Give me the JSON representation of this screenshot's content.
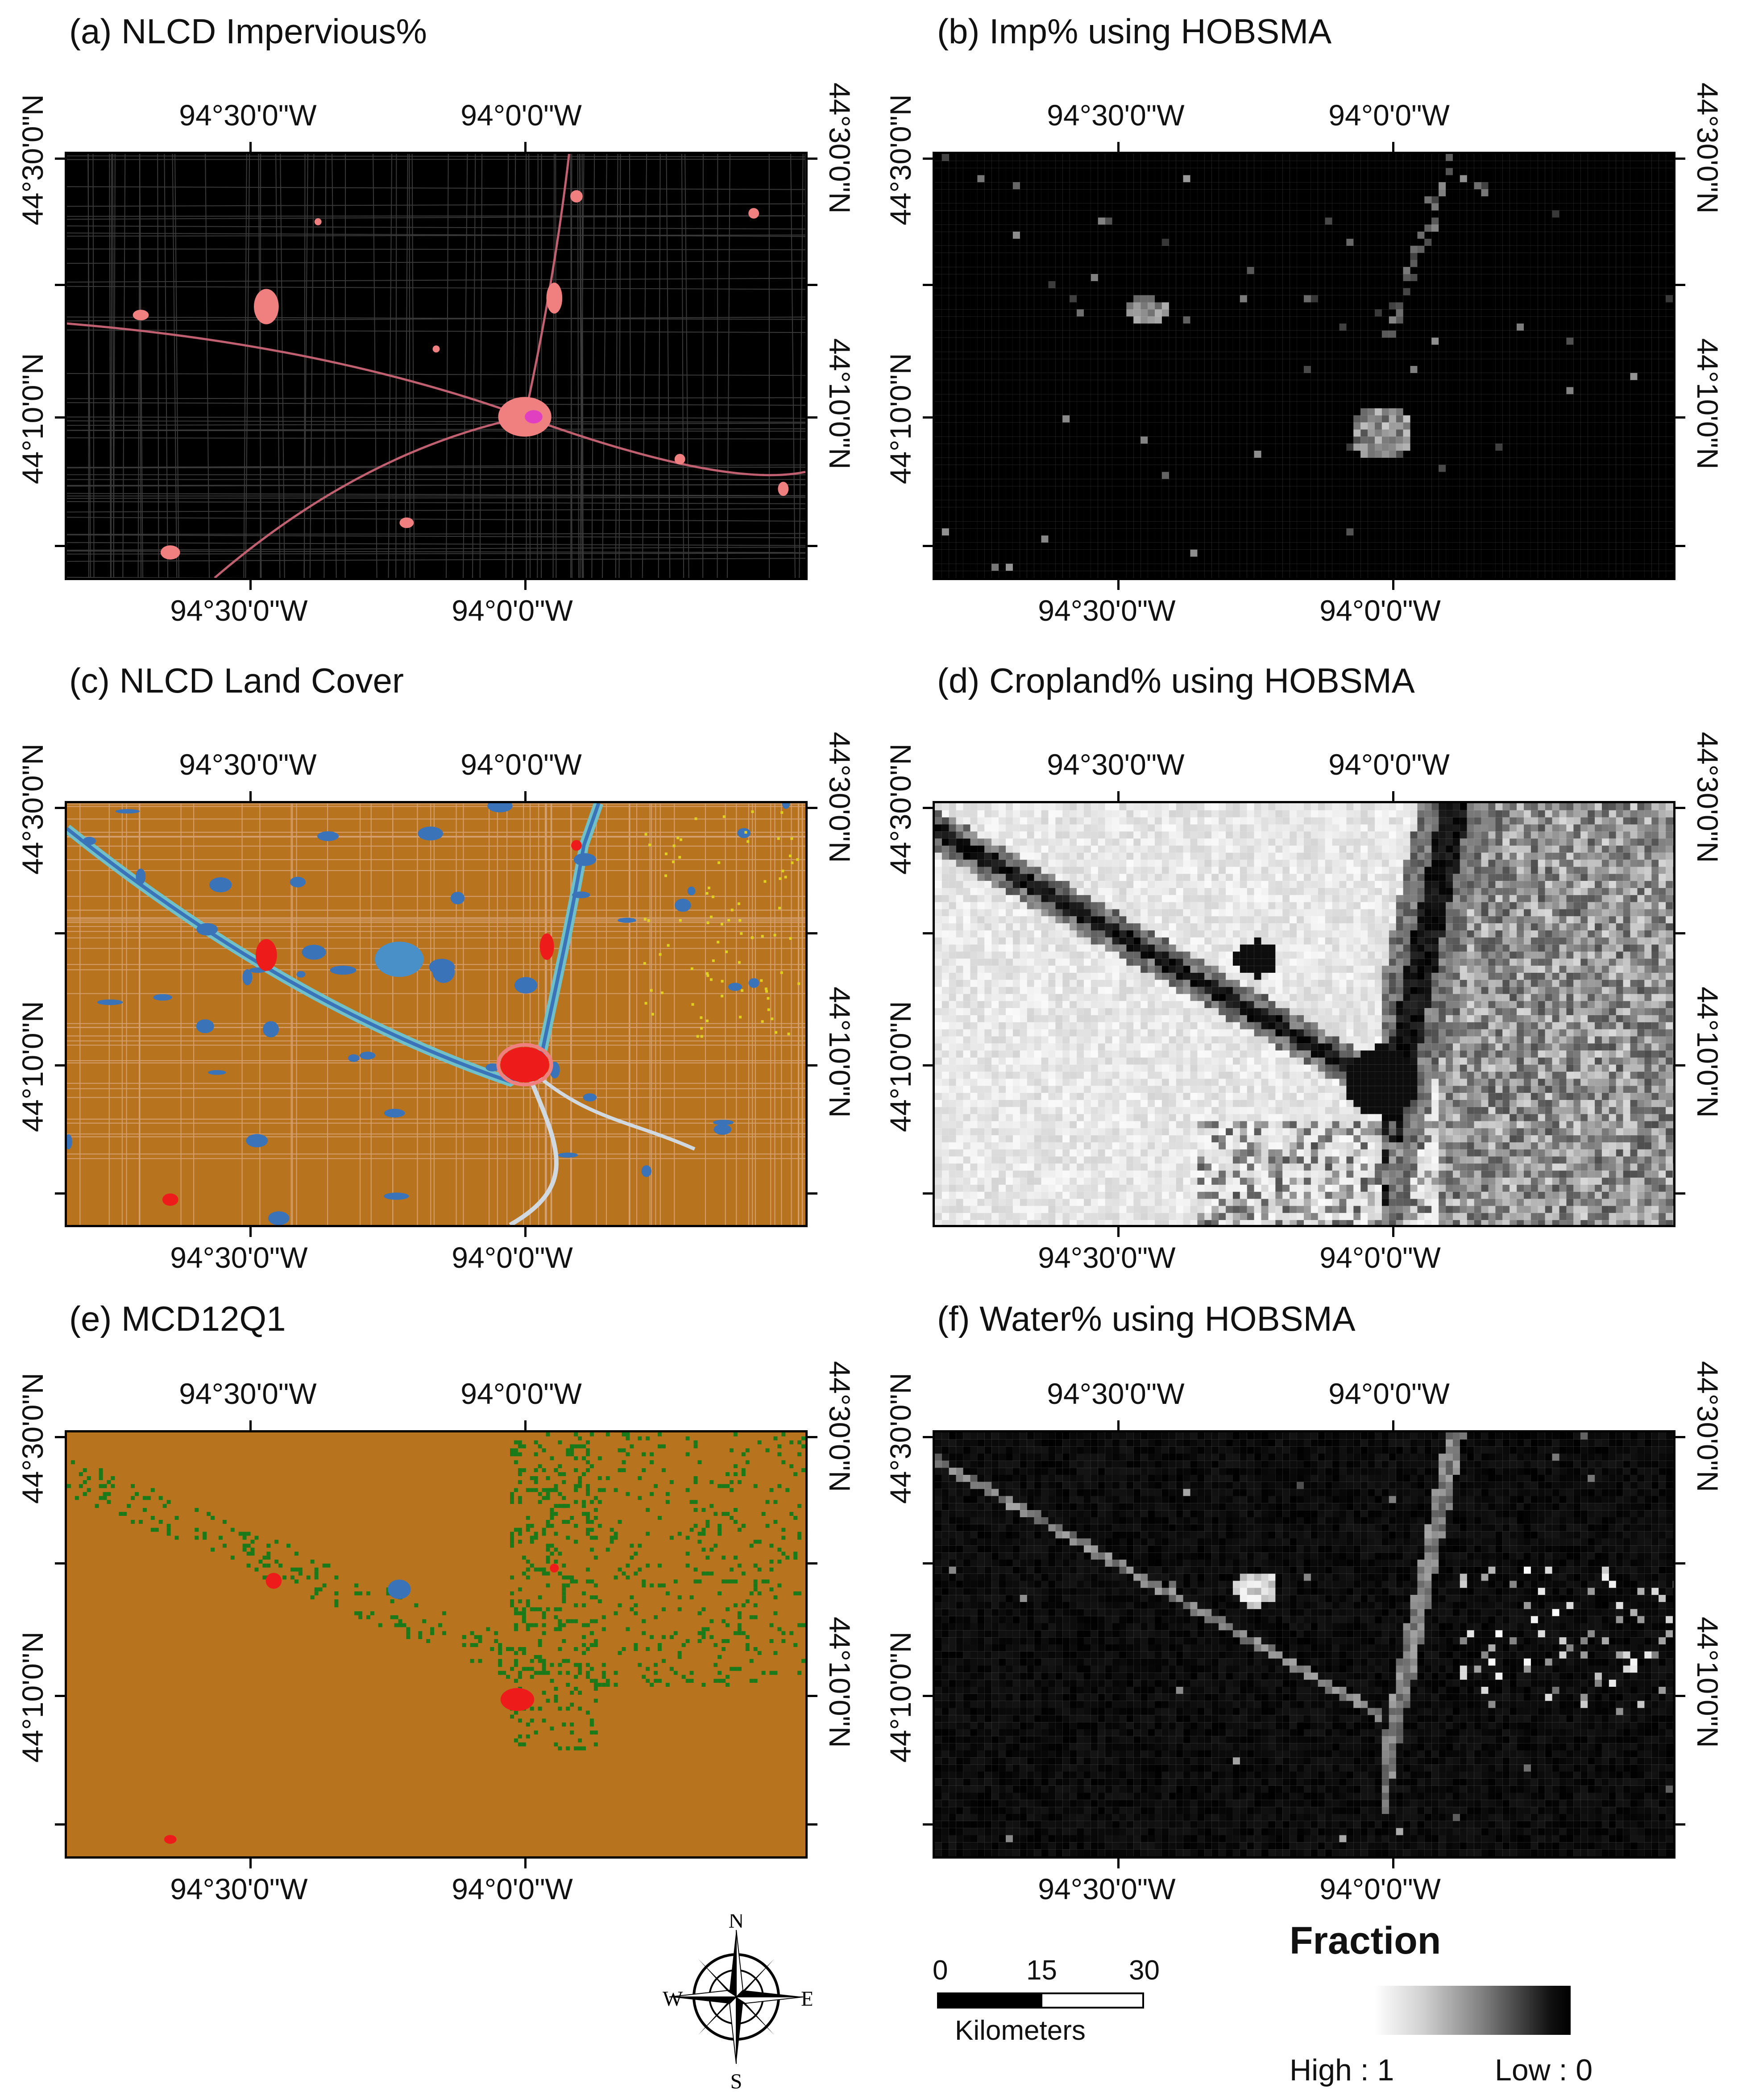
{
  "panels": [
    {
      "id": "a",
      "title": "(a) NLCD Impervious%",
      "kind": "impervious"
    },
    {
      "id": "b",
      "title": "(b) Imp% using HOBSMA",
      "kind": "hobsma-imp"
    },
    {
      "id": "c",
      "title": "(c) NLCD Land Cover",
      "kind": "landcover"
    },
    {
      "id": "d",
      "title": "(d) Cropland% using HOBSMA",
      "kind": "hobsma-crop"
    },
    {
      "id": "e",
      "title": "(e) MCD12Q1",
      "kind": "mcd12q1"
    },
    {
      "id": "f",
      "title": "(f) Water% using HOBSMA",
      "kind": "hobsma-water"
    }
  ],
  "axis_labels": {
    "lon_west": "94°30'0\"W",
    "lon_center": "94°0'0\"W",
    "lat_top": "44°30'0\"N",
    "lat_mid": "44°10'0\"N"
  },
  "legend": {
    "title": "Fraction",
    "high_label": "High : 1",
    "low_label": "Low : 0"
  },
  "scale_bar": {
    "ticks": [
      "0",
      "15",
      "30"
    ],
    "unit": "Kilometers"
  },
  "compass": {
    "north": "N",
    "south": "S",
    "east": "E",
    "west": "W"
  },
  "colors": {
    "cropland_brown": "#b8731f",
    "water_blue": "#3a73b8",
    "urban_red": "#ee1b1b",
    "urban_pink": "#f08080",
    "forest_green": "#1a7a1a",
    "wetland_cyan": "#6fc0c8",
    "map_black": "#000000"
  }
}
